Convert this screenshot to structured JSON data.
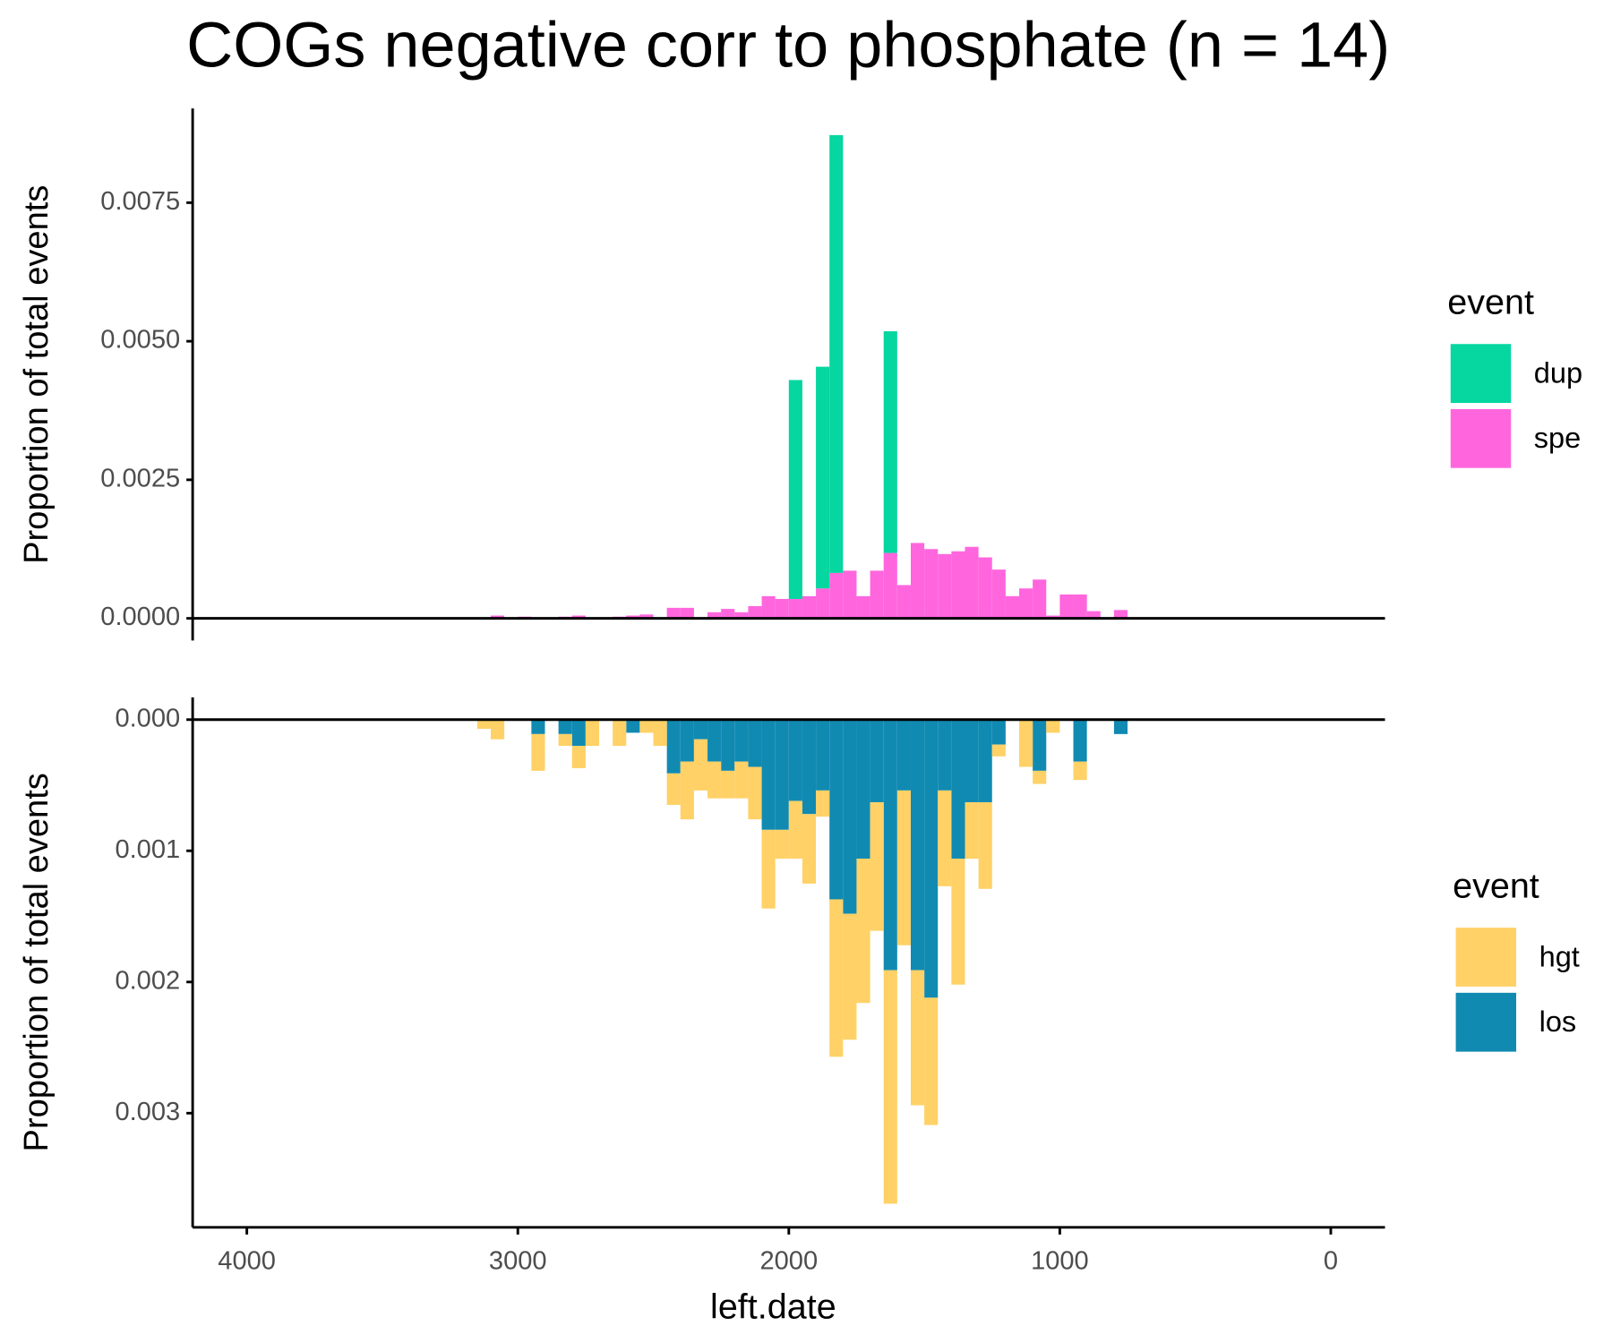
{
  "chart_data": [
    {
      "type": "histogram",
      "title": "COGs negative corr to phosphate (n = 14)",
      "ylabel": "Proportion of total events",
      "legend_title": "event",
      "legend": "right",
      "bins": [
        3150,
        3100,
        3050,
        3000,
        2950,
        2900,
        2850,
        2800,
        2750,
        2700,
        2650,
        2600,
        2550,
        2500,
        2450,
        2400,
        2350,
        2300,
        2250,
        2200,
        2150,
        2100,
        2050,
        2000,
        1950,
        1900,
        1850,
        1800,
        1750,
        1700,
        1650,
        1600,
        1550,
        1500,
        1450,
        1400,
        1350,
        1300,
        1250,
        1200,
        1150,
        1100,
        1050,
        1000,
        950,
        900,
        850,
        800,
        750
      ],
      "series": [
        {
          "name": "spe",
          "color": "#ff66dd",
          "values": [
            0,
            5e-05,
            0,
            3e-05,
            0,
            0,
            3e-05,
            5e-05,
            0,
            0,
            3e-05,
            5e-05,
            7e-05,
            0,
            0.00019,
            0.00019,
            0,
            0.00011,
            0.00017,
            0.00011,
            0.00022,
            0.0004,
            0.00035,
            0.00035,
            0.0004,
            0.00054,
            0.00082,
            0.00086,
            0.0004,
            0.00086,
            0.00118,
            0.0006,
            0.00136,
            0.00125,
            0.00116,
            0.00121,
            0.00129,
            0.0011,
            0.00088,
            0.0004,
            0.00054,
            0.0007,
            5e-05,
            0.00043,
            0.00043,
            0.00013,
            0,
            0.00015
          ]
        },
        {
          "name": "dup",
          "color": "#06d6a0",
          "values": [
            0,
            0,
            0,
            0,
            0,
            0,
            0,
            0,
            0,
            0,
            0,
            0,
            0,
            0,
            0,
            0,
            0,
            0,
            0,
            0,
            0,
            0,
            0,
            0.00395,
            0,
            0.004,
            0.0079,
            0,
            0,
            0,
            0.004,
            0,
            0,
            0,
            0,
            0,
            0,
            0,
            0,
            0,
            0,
            0,
            0,
            0,
            0,
            0,
            0,
            0
          ]
        }
      ],
      "legend_order": [
        "dup",
        "spe"
      ],
      "xlim": [
        4200,
        -200
      ],
      "ylim": [
        -0.0004,
        0.0092
      ],
      "yticks": [
        {
          "value": 0,
          "label": "0.0000"
        },
        {
          "value": 0.0025,
          "label": "0.0025"
        },
        {
          "value": 0.005,
          "label": "0.0050"
        },
        {
          "value": 0.0075,
          "label": "0.0075"
        }
      ]
    },
    {
      "type": "histogram",
      "ylabel": "Proportion of total events",
      "xlabel": "left.date",
      "legend_title": "event",
      "legend": "right",
      "bins": [
        3150,
        3100,
        3050,
        3000,
        2950,
        2900,
        2850,
        2800,
        2750,
        2700,
        2650,
        2600,
        2550,
        2500,
        2450,
        2400,
        2350,
        2300,
        2250,
        2200,
        2150,
        2100,
        2050,
        2000,
        1950,
        1900,
        1850,
        1800,
        1750,
        1700,
        1650,
        1600,
        1550,
        1500,
        1450,
        1400,
        1350,
        1300,
        1250,
        1200,
        1150,
        1100,
        1050,
        1000,
        950,
        900,
        850,
        800,
        750
      ],
      "series": [
        {
          "name": "los",
          "color": "#118ab2",
          "values": [
            0,
            0,
            0,
            0,
            0.00011,
            0,
            0.00011,
            0.0002,
            0,
            0,
            0,
            0.0001,
            0,
            0,
            0.00041,
            0.00032,
            0.00015,
            0.00032,
            0.00039,
            0.00032,
            0.00036,
            0.00084,
            0.00084,
            0.00062,
            0.00072,
            0.00054,
            0.00137,
            0.00148,
            0.00106,
            0.00063,
            0.00191,
            0.00054,
            0.00191,
            0.00212,
            0.00054,
            0.00106,
            0.00063,
            0.00063,
            0.00019,
            0,
            0,
            0.00039,
            0,
            0,
            0.00032,
            0,
            0,
            0.00011
          ]
        },
        {
          "name": "hgt",
          "color": "#ffd166",
          "values": [
            7e-05,
            0.00015,
            0,
            0,
            0.00028,
            0,
            9e-05,
            0.00017,
            0.0002,
            0,
            0.0002,
            0,
            0.0001,
            0.0002,
            0.00024,
            0.00044,
            0.00039,
            0.00028,
            0.00021,
            0.00028,
            0.0004,
            0.0006,
            0.00022,
            0.00044,
            0.00053,
            0.0002,
            0.0012,
            0.00096,
            0.0011,
            0.00098,
            0.00178,
            0.00118,
            0.00103,
            0.00097,
            0.00073,
            0.00096,
            0.00043,
            0.00066,
            9e-05,
            0,
            0.00036,
            0.0001,
            0.0001,
            0,
            0.00014,
            0,
            0,
            0
          ]
        }
      ],
      "legend_order": [
        "hgt",
        "los"
      ],
      "xlim": [
        4200,
        -200
      ],
      "ylim": [
        0.00387,
        -0.00017
      ],
      "xticks": [
        4000,
        3000,
        2000,
        1000,
        0
      ],
      "yticks": [
        {
          "value": 0,
          "label": "0.000"
        },
        {
          "value": 0.001,
          "label": "0.001"
        },
        {
          "value": 0.002,
          "label": "0.002"
        },
        {
          "value": 0.003,
          "label": "0.003"
        }
      ]
    }
  ]
}
